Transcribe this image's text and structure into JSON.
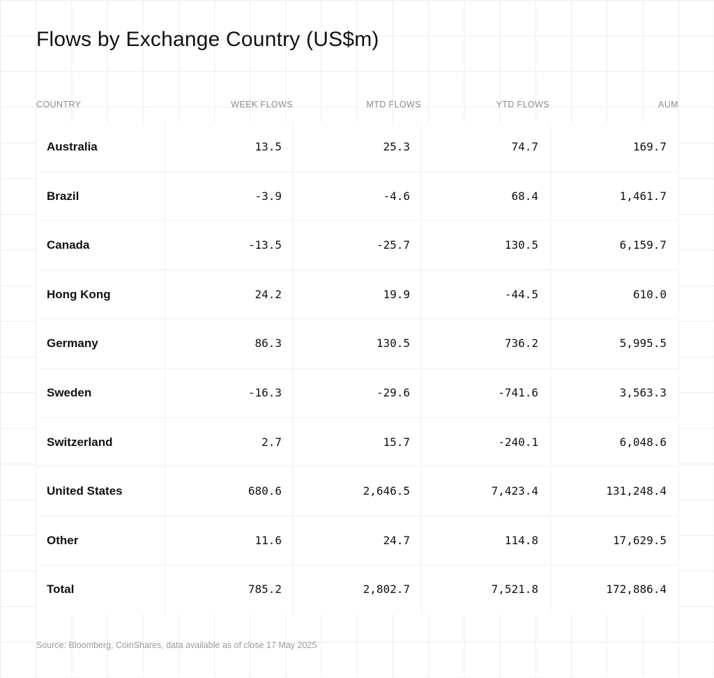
{
  "chart_data": {
    "type": "table",
    "title": "Flows by Exchange Country (US$m)",
    "columns": [
      "COUNTRY",
      "WEEK FLOWS",
      "MTD FLOWS",
      "YTD FLOWS",
      "AUM"
    ],
    "rows": [
      [
        "Australia",
        "13.5",
        "25.3",
        "74.7",
        "169.7"
      ],
      [
        "Brazil",
        "-3.9",
        "-4.6",
        "68.4",
        "1,461.7"
      ],
      [
        "Canada",
        "-13.5",
        "-25.7",
        "130.5",
        "6,159.7"
      ],
      [
        "Hong Kong",
        "24.2",
        "19.9",
        "-44.5",
        "610.0"
      ],
      [
        "Germany",
        "86.3",
        "130.5",
        "736.2",
        "5,995.5"
      ],
      [
        "Sweden",
        "-16.3",
        "-29.6",
        "-741.6",
        "3,563.3"
      ],
      [
        "Switzerland",
        "2.7",
        "15.7",
        "-240.1",
        "6,048.6"
      ],
      [
        "United States",
        "680.6",
        "2,646.5",
        "7,423.4",
        "131,248.4"
      ],
      [
        "Other",
        "11.6",
        "24.7",
        "114.8",
        "17,629.5"
      ],
      [
        "Total",
        "785.2",
        "2,802.7",
        "7,521.8",
        "172,886.4"
      ]
    ],
    "source": "Source: Bloomberg, CoinShares, data available as of close 17 May 2025"
  }
}
